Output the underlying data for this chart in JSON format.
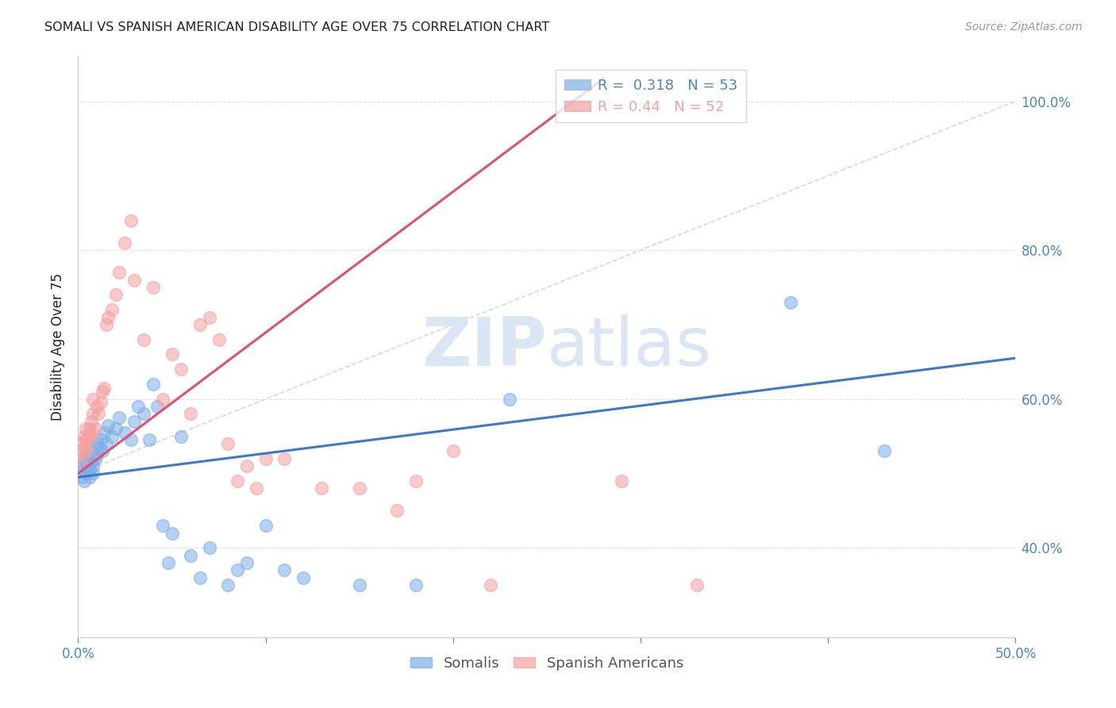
{
  "title": "SOMALI VS SPANISH AMERICAN DISABILITY AGE OVER 75 CORRELATION CHART",
  "source": "Source: ZipAtlas.com",
  "ylabel": "Disability Age Over 75",
  "xlim": [
    0.0,
    0.5
  ],
  "ylim": [
    0.28,
    1.06
  ],
  "ytick_labels": [
    "40.0%",
    "60.0%",
    "80.0%",
    "100.0%"
  ],
  "ytick_values": [
    0.4,
    0.6,
    0.8,
    1.0
  ],
  "xtick_values": [
    0.0,
    0.1,
    0.2,
    0.3,
    0.4,
    0.5
  ],
  "xtick_labels_show": [
    "0.0%",
    "",
    "",
    "",
    "",
    "50.0%"
  ],
  "somali_R": 0.318,
  "somali_N": 53,
  "spanish_R": 0.44,
  "spanish_N": 52,
  "somali_color": "#7baee8",
  "spanish_color": "#f4a0a0",
  "somali_line_color": "#3c78c8",
  "spanish_line_color": "#e05070",
  "ref_line_color": "#d8d8d8",
  "background_color": "#ffffff",
  "grid_color": "#e0e0e0",
  "axis_color": "#4a86c8",
  "title_color": "#222222",
  "watermark_color": "#d8e4f4",
  "legend_label_somali": "Somalis",
  "legend_label_spanish": "Spanish Americans",
  "somali_x": [
    0.001,
    0.002,
    0.002,
    0.003,
    0.003,
    0.004,
    0.004,
    0.005,
    0.005,
    0.006,
    0.006,
    0.007,
    0.007,
    0.008,
    0.008,
    0.009,
    0.01,
    0.01,
    0.011,
    0.012,
    0.013,
    0.014,
    0.015,
    0.016,
    0.018,
    0.02,
    0.022,
    0.025,
    0.028,
    0.03,
    0.032,
    0.035,
    0.038,
    0.04,
    0.042,
    0.045,
    0.048,
    0.05,
    0.055,
    0.06,
    0.065,
    0.07,
    0.08,
    0.085,
    0.09,
    0.1,
    0.11,
    0.12,
    0.15,
    0.18,
    0.23,
    0.38,
    0.43
  ],
  "somali_y": [
    0.51,
    0.495,
    0.52,
    0.505,
    0.49,
    0.515,
    0.5,
    0.525,
    0.51,
    0.505,
    0.495,
    0.53,
    0.515,
    0.51,
    0.5,
    0.52,
    0.54,
    0.525,
    0.535,
    0.545,
    0.53,
    0.555,
    0.54,
    0.565,
    0.55,
    0.56,
    0.575,
    0.555,
    0.545,
    0.57,
    0.59,
    0.58,
    0.545,
    0.62,
    0.59,
    0.43,
    0.38,
    0.42,
    0.55,
    0.39,
    0.36,
    0.4,
    0.35,
    0.37,
    0.38,
    0.43,
    0.37,
    0.36,
    0.35,
    0.35,
    0.6,
    0.73,
    0.53
  ],
  "spanish_x": [
    0.001,
    0.002,
    0.002,
    0.003,
    0.003,
    0.004,
    0.004,
    0.005,
    0.005,
    0.006,
    0.006,
    0.007,
    0.007,
    0.008,
    0.008,
    0.009,
    0.01,
    0.011,
    0.012,
    0.013,
    0.014,
    0.015,
    0.016,
    0.018,
    0.02,
    0.022,
    0.025,
    0.028,
    0.03,
    0.035,
    0.04,
    0.045,
    0.05,
    0.055,
    0.06,
    0.065,
    0.07,
    0.075,
    0.08,
    0.085,
    0.09,
    0.095,
    0.1,
    0.11,
    0.13,
    0.15,
    0.17,
    0.18,
    0.2,
    0.22,
    0.29,
    0.33
  ],
  "spanish_y": [
    0.54,
    0.52,
    0.53,
    0.55,
    0.535,
    0.545,
    0.56,
    0.53,
    0.545,
    0.555,
    0.56,
    0.57,
    0.55,
    0.6,
    0.58,
    0.56,
    0.59,
    0.58,
    0.595,
    0.61,
    0.615,
    0.7,
    0.71,
    0.72,
    0.74,
    0.77,
    0.81,
    0.84,
    0.76,
    0.68,
    0.75,
    0.6,
    0.66,
    0.64,
    0.58,
    0.7,
    0.71,
    0.68,
    0.54,
    0.49,
    0.51,
    0.48,
    0.52,
    0.52,
    0.48,
    0.48,
    0.45,
    0.49,
    0.53,
    0.35,
    0.49,
    0.35
  ],
  "somali_line_x": [
    0.0,
    0.5
  ],
  "somali_line_y": [
    0.495,
    0.655
  ],
  "spanish_line_x": [
    0.0,
    0.28
  ],
  "spanish_line_y": [
    0.5,
    1.03
  ],
  "ref_line_x": [
    0.0,
    0.5
  ],
  "ref_line_y": [
    0.5,
    1.0
  ]
}
